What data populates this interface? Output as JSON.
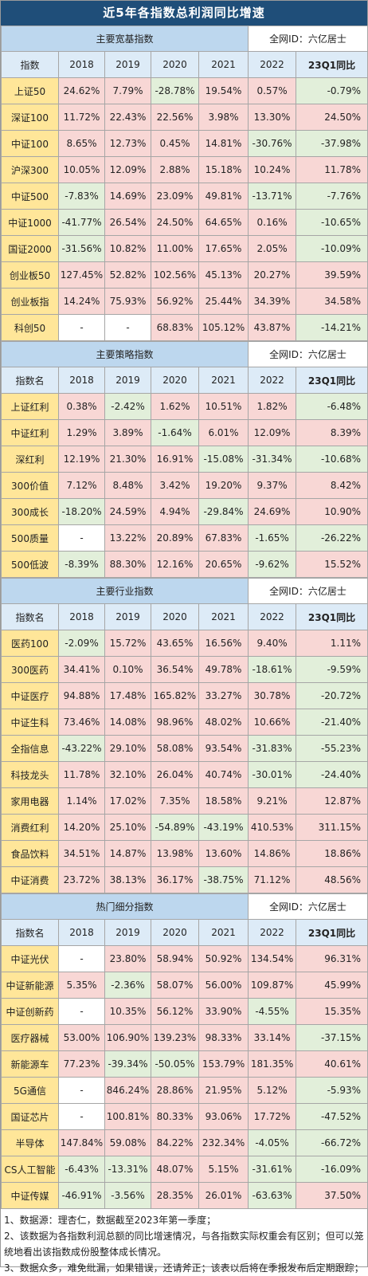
{
  "title": "近5年各指数总利润同比增速",
  "watermark": "全网ID：六亿居士",
  "years": [
    "2018",
    "2019",
    "2020",
    "2021",
    "2022"
  ],
  "q1_label": "23Q1同比",
  "colors": {
    "title_bg": "#1f4e79",
    "positive_bg": "#f8d7d5",
    "negative_bg": "#e2efda",
    "name_bg": "#ffe699",
    "header_bg": "#ddebf7",
    "section_bg": "#bdd7ee"
  },
  "sections": [
    {
      "name": "主要宽基指数",
      "name_header": "指数",
      "rows": [
        {
          "name": "上证50",
          "values": [
            "24.62%",
            "7.79%",
            "-28.78%",
            "19.54%",
            "0.57%",
            "-0.79%"
          ]
        },
        {
          "name": "深证100",
          "values": [
            "11.72%",
            "22.43%",
            "22.56%",
            "3.98%",
            "13.30%",
            "24.50%"
          ]
        },
        {
          "name": "中证100",
          "values": [
            "8.65%",
            "12.73%",
            "0.45%",
            "14.81%",
            "-30.76%",
            "-37.98%"
          ]
        },
        {
          "name": "沪深300",
          "values": [
            "10.05%",
            "12.09%",
            "2.88%",
            "15.18%",
            "10.24%",
            "11.78%"
          ]
        },
        {
          "name": "中证500",
          "values": [
            "-7.83%",
            "14.69%",
            "23.09%",
            "49.81%",
            "-13.71%",
            "-7.76%"
          ]
        },
        {
          "name": "中证1000",
          "values": [
            "-41.77%",
            "26.54%",
            "24.50%",
            "64.65%",
            "0.16%",
            "-10.65%"
          ]
        },
        {
          "name": "国证2000",
          "values": [
            "-31.56%",
            "10.82%",
            "11.00%",
            "17.65%",
            "2.05%",
            "-10.09%"
          ]
        },
        {
          "name": "创业板50",
          "values": [
            "127.45%",
            "52.82%",
            "102.56%",
            "45.13%",
            "20.27%",
            "39.59%"
          ]
        },
        {
          "name": "创业板指",
          "values": [
            "14.24%",
            "75.93%",
            "56.92%",
            "25.44%",
            "34.39%",
            "34.58%"
          ]
        },
        {
          "name": "科创50",
          "values": [
            "-",
            "-",
            "68.83%",
            "105.12%",
            "43.87%",
            "-14.21%"
          ]
        }
      ]
    },
    {
      "name": "主要策略指数",
      "name_header": "指数名",
      "rows": [
        {
          "name": "上证红利",
          "values": [
            "0.38%",
            "-2.42%",
            "1.62%",
            "10.51%",
            "1.82%",
            "-6.48%"
          ]
        },
        {
          "name": "中证红利",
          "values": [
            "1.29%",
            "3.89%",
            "-1.64%",
            "6.01%",
            "12.09%",
            "8.39%"
          ]
        },
        {
          "name": "深红利",
          "values": [
            "12.19%",
            "21.30%",
            "16.91%",
            "-15.08%",
            "-31.34%",
            "-10.68%"
          ]
        },
        {
          "name": "300价值",
          "values": [
            "7.12%",
            "8.48%",
            "3.42%",
            "19.20%",
            "9.37%",
            "8.42%"
          ]
        },
        {
          "name": "300成长",
          "values": [
            "-18.20%",
            "24.59%",
            "4.94%",
            "-29.84%",
            "24.69%",
            "10.90%"
          ]
        },
        {
          "name": "500质量",
          "values": [
            "-",
            "13.22%",
            "20.89%",
            "67.83%",
            "-1.65%",
            "-26.22%"
          ]
        },
        {
          "name": "500低波",
          "values": [
            "-8.39%",
            "88.30%",
            "12.16%",
            "20.65%",
            "-9.62%",
            "15.52%"
          ]
        }
      ]
    },
    {
      "name": "主要行业指数",
      "name_header": "指数名",
      "rows": [
        {
          "name": "医药100",
          "values": [
            "-2.09%",
            "15.72%",
            "43.65%",
            "16.56%",
            "9.40%",
            "1.11%"
          ]
        },
        {
          "name": "300医药",
          "values": [
            "34.41%",
            "0.10%",
            "36.54%",
            "49.78%",
            "-18.61%",
            "-9.59%"
          ]
        },
        {
          "name": "中证医疗",
          "values": [
            "94.88%",
            "17.48%",
            "165.82%",
            "33.27%",
            "30.78%",
            "-20.72%"
          ]
        },
        {
          "name": "中证生科",
          "values": [
            "73.46%",
            "14.08%",
            "98.96%",
            "48.02%",
            "10.66%",
            "-21.40%"
          ]
        },
        {
          "name": "全指信息",
          "values": [
            "-43.22%",
            "29.10%",
            "58.08%",
            "93.54%",
            "-31.83%",
            "-55.23%"
          ]
        },
        {
          "name": "科技龙头",
          "values": [
            "11.78%",
            "32.10%",
            "26.04%",
            "40.74%",
            "-30.01%",
            "-24.40%"
          ]
        },
        {
          "name": "家用电器",
          "values": [
            "1.14%",
            "17.02%",
            "7.35%",
            "18.58%",
            "9.21%",
            "12.87%"
          ]
        },
        {
          "name": "消费红利",
          "values": [
            "14.20%",
            "25.10%",
            "-54.89%",
            "-43.19%",
            "410.53%",
            "311.15%"
          ]
        },
        {
          "name": "食品饮料",
          "values": [
            "34.51%",
            "14.87%",
            "13.98%",
            "13.60%",
            "14.86%",
            "18.86%"
          ]
        },
        {
          "name": "中证消费",
          "values": [
            "23.72%",
            "38.13%",
            "36.17%",
            "-38.75%",
            "71.12%",
            "48.56%"
          ]
        }
      ]
    },
    {
      "name": "热门细分指数",
      "name_header": "指数名",
      "rows": [
        {
          "name": "中证光伏",
          "values": [
            "-",
            "23.80%",
            "58.94%",
            "50.92%",
            "134.54%",
            "96.31%"
          ]
        },
        {
          "name": "中证新能源",
          "values": [
            "5.35%",
            "-2.36%",
            "58.07%",
            "56.00%",
            "109.87%",
            "45.99%"
          ]
        },
        {
          "name": "中证创新药",
          "values": [
            "-",
            "10.35%",
            "56.12%",
            "33.90%",
            "-4.55%",
            "15.35%"
          ]
        },
        {
          "name": "医疗器械",
          "values": [
            "53.00%",
            "106.90%",
            "139.23%",
            "98.33%",
            "33.14%",
            "-37.15%"
          ]
        },
        {
          "name": "新能源车",
          "values": [
            "77.23%",
            "-39.34%",
            "-50.05%",
            "153.79%",
            "181.35%",
            "40.61%"
          ]
        },
        {
          "name": "5G通信",
          "values": [
            "-",
            "846.24%",
            "28.86%",
            "21.95%",
            "5.12%",
            "-5.93%"
          ]
        },
        {
          "name": "国证芯片",
          "values": [
            "-",
            "100.81%",
            "80.33%",
            "93.06%",
            "17.72%",
            "-47.52%"
          ]
        },
        {
          "name": "半导体",
          "values": [
            "147.84%",
            "59.08%",
            "84.22%",
            "232.34%",
            "-4.05%",
            "-66.72%"
          ]
        },
        {
          "name": "CS人工智能",
          "values": [
            "-6.43%",
            "-13.31%",
            "48.07%",
            "5.15%",
            "-31.61%",
            "-16.09%"
          ]
        },
        {
          "name": "中证传媒",
          "values": [
            "-46.91%",
            "-3.56%",
            "28.35%",
            "26.01%",
            "-63.63%",
            "37.50%"
          ]
        }
      ]
    }
  ],
  "notes": [
    "1、数据源：理杏仁，数据截至2023年第一季度；",
    "2、该数据为各指数利润总额的同比增速情况，与各指数实际权重会有区别；但可以笼统地看出该指数成份股整体成长情况。",
    "3、数据众多，难免纰漏，如果错误，还请斧正；该表以后将在季报发布后定期跟踪；"
  ]
}
